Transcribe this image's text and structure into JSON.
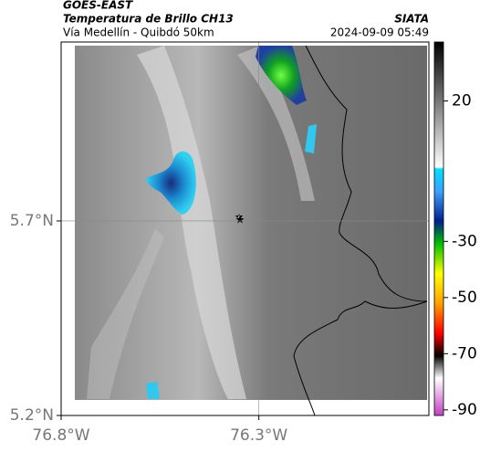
{
  "header": {
    "source": "GOES-EAST",
    "title": "Temperatura de Brillo CH13",
    "subtitle": "Vía Medellín - Quibdó 50km",
    "brand": "SIATA",
    "datetime": "2024-09-09 05:49"
  },
  "map": {
    "xlim": [
      -76.8,
      -75.87
    ],
    "ylim": [
      5.2,
      6.16
    ],
    "xticks": [
      {
        "value": -76.8,
        "label": "76.8°W"
      },
      {
        "value": -76.3,
        "label": "76.3°W"
      }
    ],
    "yticks": [
      {
        "value": 5.2,
        "label": "5.2°N"
      },
      {
        "value": 5.7,
        "label": "5.7°N"
      }
    ],
    "grid": true
  },
  "colorbar": {
    "lim": [
      -92,
      41
    ],
    "ticks": [
      20,
      -30,
      -50,
      -70,
      -90
    ]
  }
}
